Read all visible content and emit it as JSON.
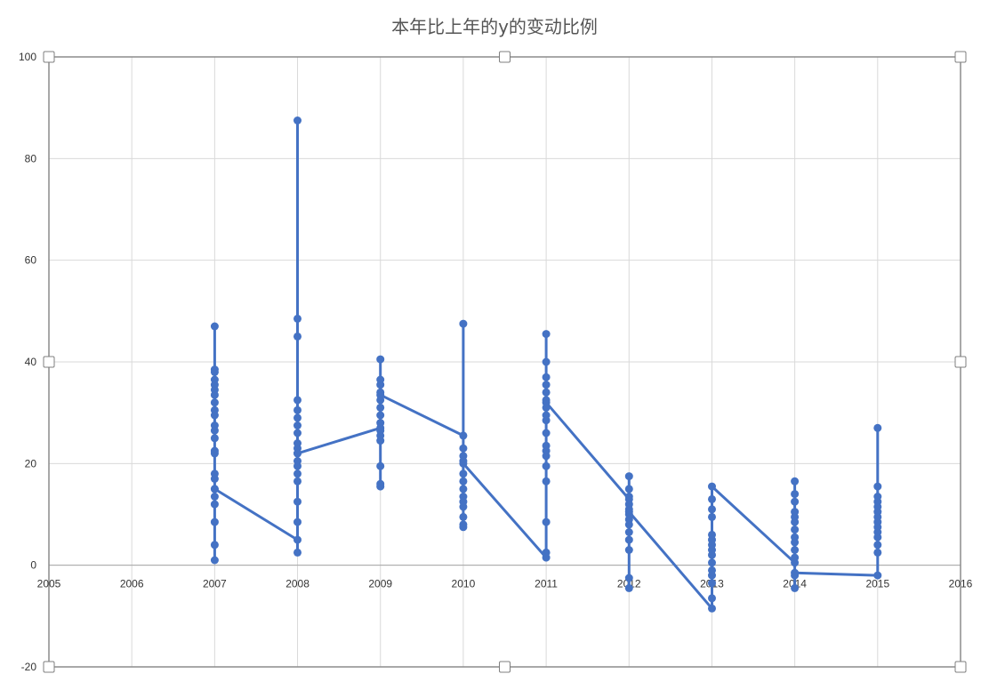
{
  "chart_data": {
    "type": "line",
    "title": "本年比上年的y的变动比例",
    "xlim": [
      2005,
      2016
    ],
    "ylim": [
      -20,
      100
    ],
    "x_ticks": [
      2005,
      2006,
      2007,
      2008,
      2009,
      2010,
      2011,
      2012,
      2013,
      2014,
      2015,
      2016
    ],
    "y_ticks": [
      -20,
      0,
      20,
      40,
      60,
      80,
      100
    ],
    "grid": true,
    "legend": "none",
    "series": [
      {
        "color": "#4472c4",
        "points": [
          [
            2007,
            47.0
          ],
          [
            2007,
            38.5
          ],
          [
            2007,
            38.0
          ],
          [
            2007,
            36.5
          ],
          [
            2007,
            35.5
          ],
          [
            2007,
            34.5
          ],
          [
            2007,
            33.5
          ],
          [
            2007,
            32.0
          ],
          [
            2007,
            30.5
          ],
          [
            2007,
            29.5
          ],
          [
            2007,
            27.5
          ],
          [
            2007,
            26.5
          ],
          [
            2007,
            25.0
          ],
          [
            2007,
            22.5
          ],
          [
            2007,
            22.0
          ],
          [
            2007,
            18.0
          ],
          [
            2007,
            17.0
          ],
          [
            2007,
            15.0
          ],
          [
            2007,
            13.5
          ],
          [
            2007,
            12.0
          ],
          [
            2007,
            8.5
          ],
          [
            2007,
            4.0
          ],
          [
            2007,
            1.0
          ],
          [
            2007,
            15.0
          ],
          [
            2008,
            5.0
          ],
          [
            2008,
            2.5
          ],
          [
            2008,
            8.5
          ],
          [
            2008,
            12.5
          ],
          [
            2008,
            16.5
          ],
          [
            2008,
            18.0
          ],
          [
            2008,
            19.5
          ],
          [
            2008,
            20.5
          ],
          [
            2008,
            22.0
          ],
          [
            2008,
            23.0
          ],
          [
            2008,
            24.0
          ],
          [
            2008,
            26.0
          ],
          [
            2008,
            27.5
          ],
          [
            2008,
            29.0
          ],
          [
            2008,
            30.5
          ],
          [
            2008,
            32.5
          ],
          [
            2008,
            45.0
          ],
          [
            2008,
            48.5
          ],
          [
            2008,
            87.5
          ],
          [
            2008,
            22.0
          ],
          [
            2009,
            27.0
          ],
          [
            2009,
            15.5
          ],
          [
            2009,
            16.0
          ],
          [
            2009,
            19.5
          ],
          [
            2009,
            24.5
          ],
          [
            2009,
            25.5
          ],
          [
            2009,
            26.5
          ],
          [
            2009,
            28.0
          ],
          [
            2009,
            29.5
          ],
          [
            2009,
            31.0
          ],
          [
            2009,
            32.5
          ],
          [
            2009,
            34.0
          ],
          [
            2009,
            35.5
          ],
          [
            2009,
            36.5
          ],
          [
            2009,
            40.5
          ],
          [
            2009,
            33.5
          ],
          [
            2010,
            25.5
          ],
          [
            2010,
            47.5
          ],
          [
            2010,
            23.0
          ],
          [
            2010,
            21.5
          ],
          [
            2010,
            20.5
          ],
          [
            2010,
            18.0
          ],
          [
            2010,
            16.5
          ],
          [
            2010,
            15.0
          ],
          [
            2010,
            13.5
          ],
          [
            2010,
            12.5
          ],
          [
            2010,
            11.5
          ],
          [
            2010,
            9.5
          ],
          [
            2010,
            8.0
          ],
          [
            2010,
            7.5
          ],
          [
            2010,
            20.0
          ],
          [
            2011,
            1.5
          ],
          [
            2011,
            2.5
          ],
          [
            2011,
            8.5
          ],
          [
            2011,
            16.5
          ],
          [
            2011,
            19.5
          ],
          [
            2011,
            21.5
          ],
          [
            2011,
            22.5
          ],
          [
            2011,
            23.5
          ],
          [
            2011,
            26.0
          ],
          [
            2011,
            28.5
          ],
          [
            2011,
            29.5
          ],
          [
            2011,
            31.0
          ],
          [
            2011,
            32.5
          ],
          [
            2011,
            34.0
          ],
          [
            2011,
            35.5
          ],
          [
            2011,
            37.0
          ],
          [
            2011,
            40.0
          ],
          [
            2011,
            45.5
          ],
          [
            2011,
            32.0
          ],
          [
            2012,
            13.0
          ],
          [
            2012,
            17.5
          ],
          [
            2012,
            15.0
          ],
          [
            2012,
            13.5
          ],
          [
            2012,
            12.0
          ],
          [
            2012,
            11.0
          ],
          [
            2012,
            10.0
          ],
          [
            2012,
            9.0
          ],
          [
            2012,
            8.0
          ],
          [
            2012,
            6.5
          ],
          [
            2012,
            5.0
          ],
          [
            2012,
            3.0
          ],
          [
            2012,
            -2.5
          ],
          [
            2012,
            -4.5
          ],
          [
            2012,
            10.5
          ],
          [
            2013,
            -8.5
          ],
          [
            2013,
            -6.5
          ],
          [
            2013,
            -3.5
          ],
          [
            2013,
            -2.0
          ],
          [
            2013,
            -1.0
          ],
          [
            2013,
            0.5
          ],
          [
            2013,
            2.0
          ],
          [
            2013,
            3.0
          ],
          [
            2013,
            4.0
          ],
          [
            2013,
            5.0
          ],
          [
            2013,
            6.0
          ],
          [
            2013,
            9.5
          ],
          [
            2013,
            11.0
          ],
          [
            2013,
            13.0
          ],
          [
            2013,
            15.5
          ],
          [
            2014,
            0.5
          ],
          [
            2014,
            16.5
          ],
          [
            2014,
            14.0
          ],
          [
            2014,
            12.5
          ],
          [
            2014,
            10.5
          ],
          [
            2014,
            9.5
          ],
          [
            2014,
            8.5
          ],
          [
            2014,
            7.0
          ],
          [
            2014,
            5.5
          ],
          [
            2014,
            4.5
          ],
          [
            2014,
            3.0
          ],
          [
            2014,
            1.5
          ],
          [
            2014,
            -2.0
          ],
          [
            2014,
            -4.5
          ],
          [
            2014,
            -1.5
          ],
          [
            2015,
            -2.0
          ],
          [
            2015,
            2.5
          ],
          [
            2015,
            4.0
          ],
          [
            2015,
            5.5
          ],
          [
            2015,
            6.5
          ],
          [
            2015,
            7.5
          ],
          [
            2015,
            8.5
          ],
          [
            2015,
            9.5
          ],
          [
            2015,
            10.5
          ],
          [
            2015,
            11.5
          ],
          [
            2015,
            12.5
          ],
          [
            2015,
            13.5
          ],
          [
            2015,
            15.5
          ],
          [
            2015,
            27.0
          ]
        ]
      }
    ]
  }
}
